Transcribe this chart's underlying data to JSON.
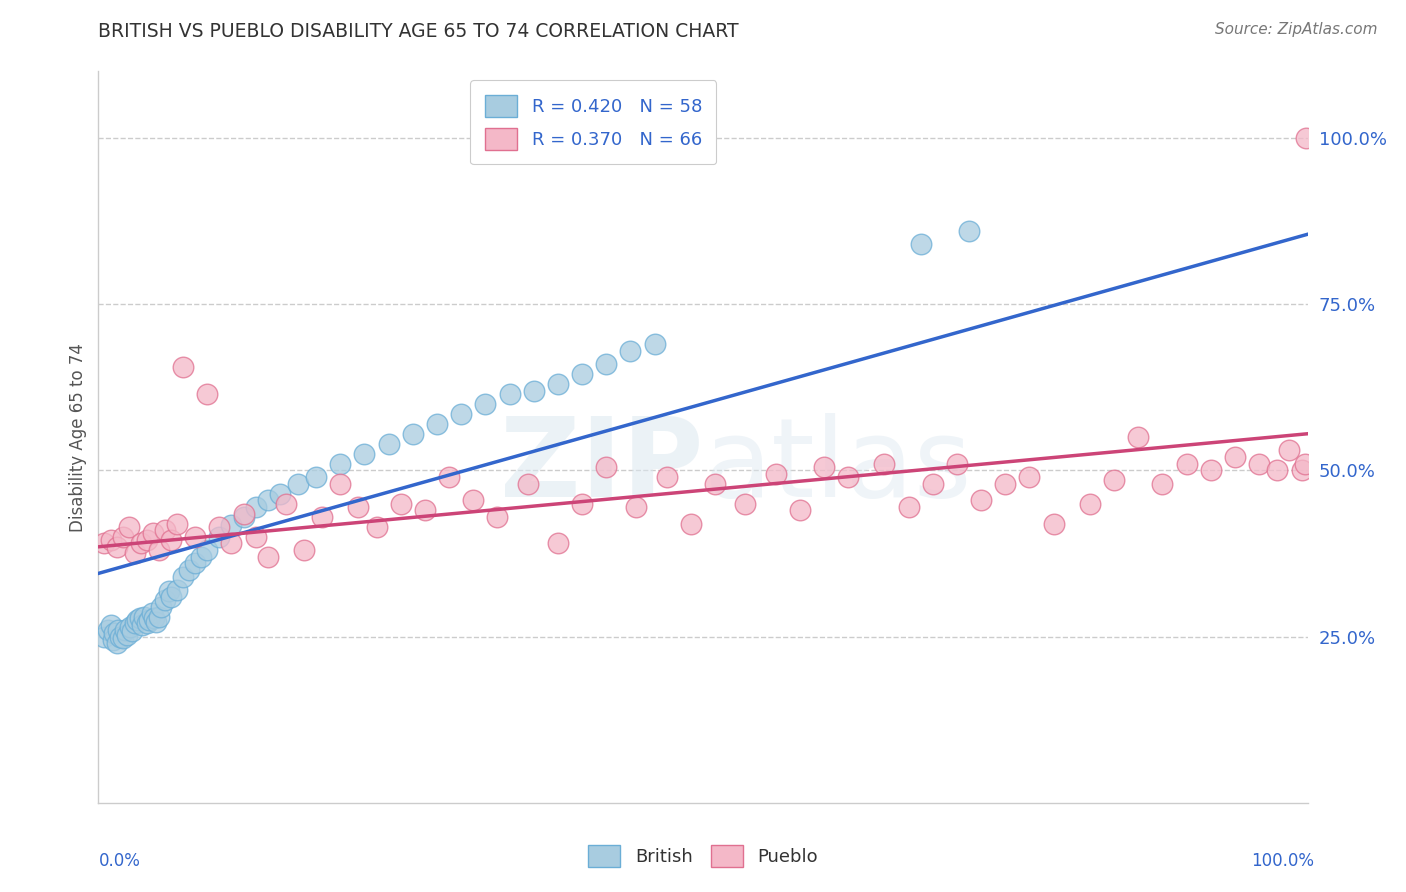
{
  "title": "BRITISH VS PUEBLO DISABILITY AGE 65 TO 74 CORRELATION CHART",
  "ylabel": "Disability Age 65 to 74",
  "source": "Source: ZipAtlas.com",
  "watermark": "ZIPatlas",
  "british_R": 0.42,
  "british_N": 58,
  "pueblo_R": 0.37,
  "pueblo_N": 66,
  "british_color": "#a8cce0",
  "british_edge_color": "#6baed6",
  "pueblo_color": "#f4b8c8",
  "pueblo_edge_color": "#e07090",
  "british_line_color": "#3366cc",
  "pueblo_line_color": "#cc4477",
  "background_color": "#ffffff",
  "grid_color": "#cccccc",
  "ytick_labels": [
    "25.0%",
    "50.0%",
    "75.0%",
    "100.0%"
  ],
  "ytick_values": [
    0.25,
    0.5,
    0.75,
    1.0
  ],
  "xlim": [
    0.0,
    1.0
  ],
  "ylim": [
    0.0,
    1.1
  ],
  "british_line_x0": 0.0,
  "british_line_y0": 0.345,
  "british_line_x1": 1.0,
  "british_line_y1": 0.855,
  "pueblo_line_x0": 0.0,
  "pueblo_line_y0": 0.385,
  "pueblo_line_x1": 1.0,
  "pueblo_line_y1": 0.555,
  "british_x": [
    0.005,
    0.008,
    0.01,
    0.012,
    0.013,
    0.015,
    0.016,
    0.018,
    0.02,
    0.022,
    0.024,
    0.026,
    0.028,
    0.03,
    0.032,
    0.034,
    0.036,
    0.038,
    0.04,
    0.042,
    0.044,
    0.046,
    0.048,
    0.05,
    0.052,
    0.055,
    0.058,
    0.06,
    0.065,
    0.07,
    0.075,
    0.08,
    0.085,
    0.09,
    0.1,
    0.11,
    0.12,
    0.13,
    0.14,
    0.15,
    0.165,
    0.18,
    0.2,
    0.22,
    0.24,
    0.26,
    0.28,
    0.3,
    0.32,
    0.34,
    0.36,
    0.38,
    0.4,
    0.42,
    0.44,
    0.46,
    0.68,
    0.72
  ],
  "british_y": [
    0.25,
    0.26,
    0.268,
    0.245,
    0.255,
    0.24,
    0.26,
    0.25,
    0.248,
    0.26,
    0.252,
    0.265,
    0.258,
    0.27,
    0.275,
    0.278,
    0.268,
    0.28,
    0.27,
    0.275,
    0.285,
    0.278,
    0.272,
    0.28,
    0.295,
    0.305,
    0.318,
    0.31,
    0.32,
    0.34,
    0.35,
    0.36,
    0.37,
    0.38,
    0.4,
    0.418,
    0.43,
    0.445,
    0.455,
    0.465,
    0.48,
    0.49,
    0.51,
    0.525,
    0.54,
    0.555,
    0.57,
    0.585,
    0.6,
    0.615,
    0.62,
    0.63,
    0.645,
    0.66,
    0.68,
    0.69,
    0.84,
    0.86
  ],
  "pueblo_x": [
    0.005,
    0.01,
    0.015,
    0.02,
    0.025,
    0.03,
    0.035,
    0.04,
    0.045,
    0.05,
    0.055,
    0.06,
    0.065,
    0.07,
    0.08,
    0.09,
    0.1,
    0.11,
    0.12,
    0.13,
    0.14,
    0.155,
    0.17,
    0.185,
    0.2,
    0.215,
    0.23,
    0.25,
    0.27,
    0.29,
    0.31,
    0.33,
    0.355,
    0.38,
    0.4,
    0.42,
    0.445,
    0.47,
    0.49,
    0.51,
    0.535,
    0.56,
    0.58,
    0.6,
    0.62,
    0.65,
    0.67,
    0.69,
    0.71,
    0.73,
    0.75,
    0.77,
    0.79,
    0.82,
    0.84,
    0.86,
    0.88,
    0.9,
    0.92,
    0.94,
    0.96,
    0.975,
    0.985,
    0.995,
    0.998,
    0.999
  ],
  "pueblo_y": [
    0.39,
    0.395,
    0.385,
    0.4,
    0.415,
    0.375,
    0.39,
    0.395,
    0.405,
    0.38,
    0.41,
    0.395,
    0.42,
    0.655,
    0.4,
    0.615,
    0.415,
    0.39,
    0.435,
    0.4,
    0.37,
    0.45,
    0.38,
    0.43,
    0.48,
    0.445,
    0.415,
    0.45,
    0.44,
    0.49,
    0.455,
    0.43,
    0.48,
    0.39,
    0.45,
    0.505,
    0.445,
    0.49,
    0.42,
    0.48,
    0.45,
    0.495,
    0.44,
    0.505,
    0.49,
    0.51,
    0.445,
    0.48,
    0.51,
    0.455,
    0.48,
    0.49,
    0.42,
    0.45,
    0.485,
    0.55,
    0.48,
    0.51,
    0.5,
    0.52,
    0.51,
    0.5,
    0.53,
    0.5,
    0.51,
    1.0
  ]
}
